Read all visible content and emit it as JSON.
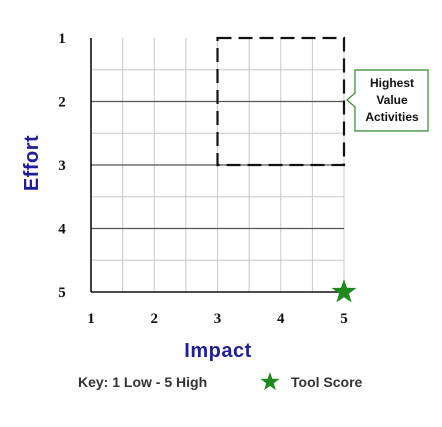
{
  "chart_data": {
    "type": "scatter",
    "xlabel": "Impact",
    "ylabel": "Effort",
    "x_ticks": [
      "1",
      "2",
      "3",
      "4",
      "5"
    ],
    "y_ticks": [
      "1",
      "2",
      "3",
      "4",
      "5"
    ],
    "xlim": [
      1,
      5
    ],
    "ylim": [
      1,
      5
    ],
    "y_axis_reversed": true,
    "grid": true,
    "points": [
      {
        "name": "Tool Score",
        "x": 5,
        "y": 5,
        "marker": "star",
        "color": "#1e8a1e"
      }
    ],
    "highlight_region": {
      "x_range": [
        3,
        5
      ],
      "y_range": [
        1,
        3
      ],
      "style": "dashed",
      "label_lines": [
        "Highest",
        "Value",
        "Activities"
      ],
      "label_border_color": "#2e8b2e"
    },
    "key": {
      "scale_text": "Key: 1 Low - 5 High",
      "marker_label": "Tool Score"
    },
    "colors": {
      "axis_title": "#1f1f9a",
      "star": "#1e8a1e",
      "minor_grid": "#c8c8c8",
      "major_grid": "#555555"
    }
  }
}
